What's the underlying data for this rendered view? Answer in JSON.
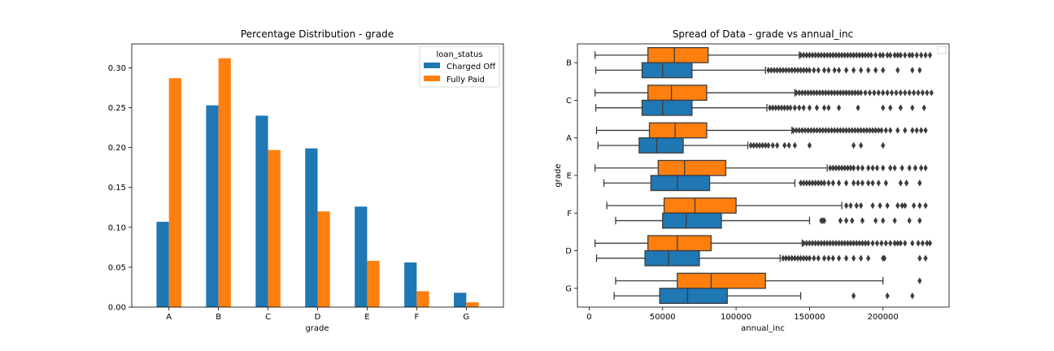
{
  "colors": {
    "charged_off": "#1f77b4",
    "fully_paid": "#ff7f0e"
  },
  "chart_data": [
    {
      "type": "bar",
      "title": "Percentage Distribution - grade",
      "xlabel": "grade",
      "ylabel": "",
      "categories": [
        "A",
        "B",
        "C",
        "D",
        "E",
        "F",
        "G"
      ],
      "ylim": [
        0,
        0.33
      ],
      "yticks": [
        "0.00",
        "0.05",
        "0.10",
        "0.15",
        "0.20",
        "0.25",
        "0.30"
      ],
      "legend": {
        "title": "loan_status",
        "placement": "top-right"
      },
      "series": [
        {
          "name": "Charged Off",
          "values": [
            0.107,
            0.253,
            0.24,
            0.199,
            0.126,
            0.056,
            0.018
          ]
        },
        {
          "name": "Fully Paid",
          "values": [
            0.287,
            0.312,
            0.197,
            0.12,
            0.058,
            0.02,
            0.006
          ]
        }
      ]
    },
    {
      "type": "box",
      "title": "Spread of Data - grade vs annual_inc",
      "xlabel": "annual_inc",
      "ylabel": "grade",
      "categories": [
        "B",
        "C",
        "A",
        "E",
        "F",
        "D",
        "G"
      ],
      "xlim": [
        -8000,
        245000
      ],
      "xticks": [
        "0",
        "50000",
        "100000",
        "150000",
        "200000"
      ],
      "legend": {
        "placement": "top-right",
        "entries": []
      },
      "series_order": [
        "Fully Paid",
        "Charged Off"
      ],
      "boxes": {
        "B": {
          "Fully Paid": {
            "whislo": 4000,
            "q1": 40000,
            "med": 58000,
            "q3": 81000,
            "whishi": 143000,
            "fliers": [
              144000,
              146000,
              148000,
              150000,
              152000,
              154000,
              156000,
              158000,
              160000,
              162000,
              164000,
              166000,
              168000,
              170000,
              172000,
              174000,
              176000,
              178000,
              180000,
              182000,
              184000,
              186000,
              188000,
              190000,
              192000,
              195000,
              198000,
              200000,
              203000,
              205000,
              208000,
              210000,
              212000,
              215000,
              218000,
              220000,
              223000,
              226000,
              229000,
              232000
            ]
          },
          "Charged Off": {
            "whislo": 4500,
            "q1": 36000,
            "med": 50000,
            "q3": 70000,
            "whishi": 120000,
            "fliers": [
              122000,
              124000,
              126000,
              128000,
              130000,
              132000,
              134000,
              136000,
              138000,
              140000,
              142000,
              144000,
              146000,
              148000,
              150000,
              153000,
              156000,
              160000,
              163000,
              167000,
              170000,
              175000,
              180000,
              185000,
              190000,
              195000,
              200000,
              210000,
              220000,
              225000
            ]
          }
        },
        "C": {
          "Fully Paid": {
            "whislo": 4000,
            "q1": 40000,
            "med": 56000,
            "q3": 80000,
            "whishi": 140000,
            "fliers": [
              141000,
              143000,
              145000,
              147000,
              149000,
              151000,
              153000,
              155000,
              157000,
              159000,
              161000,
              163000,
              165000,
              167000,
              169000,
              171000,
              173000,
              175000,
              177000,
              179000,
              181000,
              183000,
              185000,
              188000,
              191000,
              194000,
              197000,
              200000,
              203000,
              206000,
              209000,
              212000,
              215000,
              218000,
              221000,
              224000,
              227000,
              230000,
              233000
            ]
          },
          "Charged Off": {
            "whislo": 4500,
            "q1": 36000,
            "med": 50000,
            "q3": 70000,
            "whishi": 121000,
            "fliers": [
              123000,
              125000,
              127000,
              129000,
              131000,
              133000,
              135000,
              137000,
              140000,
              143000,
              146000,
              150000,
              155000,
              160000,
              163000,
              170000,
              183000,
              200000,
              205000,
              212000,
              220000,
              228000
            ]
          }
        },
        "A": {
          "Fully Paid": {
            "whislo": 5000,
            "q1": 41000,
            "med": 58500,
            "q3": 80000,
            "whishi": 138000,
            "fliers": [
              139000,
              141000,
              143000,
              145000,
              147000,
              149000,
              151000,
              153000,
              155000,
              157000,
              159000,
              161000,
              163000,
              165000,
              167000,
              169000,
              171000,
              173000,
              175000,
              177000,
              179000,
              181000,
              183000,
              185000,
              187000,
              189000,
              191000,
              193000,
              195000,
              197000,
              199000,
              202000,
              205000,
              210000,
              215000,
              220000,
              223000,
              226000,
              229000
            ]
          },
          "Charged Off": {
            "whislo": 6000,
            "q1": 34000,
            "med": 46000,
            "q3": 64000,
            "whishi": 108000,
            "fliers": [
              110000,
              112000,
              114000,
              116000,
              118000,
              120000,
              122000,
              125000,
              128000,
              133000,
              136000,
              140000,
              150000,
              180000,
              185000,
              200000
            ]
          }
        },
        "E": {
          "Fully Paid": {
            "whislo": 4000,
            "q1": 47000,
            "med": 65000,
            "q3": 93000,
            "whishi": 162000,
            "fliers": [
              164000,
              166000,
              168000,
              170000,
              172000,
              174000,
              176000,
              178000,
              180000,
              183000,
              186000,
              190000,
              193000,
              196000,
              200000,
              205000,
              208000,
              213000,
              218000,
              222000,
              226000,
              229000
            ]
          },
          "Charged Off": {
            "whislo": 10000,
            "q1": 42000,
            "med": 60000,
            "q3": 82000,
            "whishi": 140000,
            "fliers": [
              144000,
              146000,
              148000,
              150000,
              152000,
              154000,
              156000,
              158000,
              160000,
              163000,
              166000,
              170000,
              175000,
              180000,
              183000,
              186000,
              190000,
              193000,
              197000,
              202000,
              212000,
              216000,
              225000
            ]
          }
        },
        "F": {
          "Fully Paid": {
            "whislo": 12000,
            "q1": 51000,
            "med": 72000,
            "q3": 100000,
            "whishi": 172000,
            "fliers": [
              175000,
              178000,
              182000,
              185000,
              193000,
              198000,
              203000,
              210000,
              213000,
              215000,
              221000,
              225000,
              229000
            ]
          },
          "Charged Off": {
            "whislo": 18000,
            "q1": 50000,
            "med": 66000,
            "q3": 90000,
            "whishi": 150000,
            "fliers": [
              158000,
              159000,
              160000,
              171000,
              175000,
              179000,
              186000,
              195000,
              200000,
              208000,
              218000,
              225000
            ]
          }
        },
        "D": {
          "Fully Paid": {
            "whislo": 4000,
            "q1": 40000,
            "med": 60000,
            "q3": 83000,
            "whishi": 145000,
            "fliers": [
              146000,
              148000,
              150000,
              152000,
              154000,
              156000,
              158000,
              160000,
              162000,
              164000,
              166000,
              168000,
              170000,
              172000,
              174000,
              176000,
              178000,
              180000,
              182000,
              184000,
              186000,
              188000,
              190000,
              193000,
              196000,
              199000,
              202000,
              205000,
              208000,
              210000,
              212000,
              215000,
              220000,
              224000,
              227000,
              230000,
              232000
            ]
          },
          "Charged Off": {
            "whislo": 5000,
            "q1": 38000,
            "med": 54000,
            "q3": 75000,
            "whishi": 130000,
            "fliers": [
              132000,
              134000,
              136000,
              138000,
              140000,
              142000,
              144000,
              146000,
              148000,
              150000,
              153000,
              156000,
              160000,
              163000,
              166000,
              170000,
              175000,
              180000,
              185000,
              190000,
              200000,
              201000,
              225000,
              229000
            ]
          }
        },
        "G": {
          "Fully Paid": {
            "whislo": 18000,
            "q1": 60000,
            "med": 83000,
            "q3": 120000,
            "whishi": 200000,
            "fliers": [
              225000
            ]
          },
          "Charged Off": {
            "whislo": 17000,
            "q1": 48000,
            "med": 67000,
            "q3": 94000,
            "whishi": 144000,
            "fliers": [
              180000,
              203000,
              220000
            ]
          }
        }
      }
    }
  ]
}
